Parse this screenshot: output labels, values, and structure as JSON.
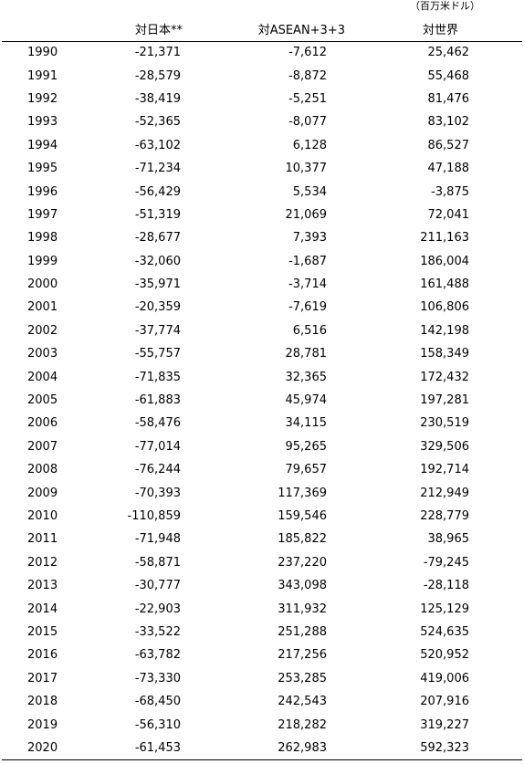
{
  "unit_note": "（百万米ドル）",
  "columns": [
    "",
    "対日本**",
    "対ASEAN+3+3",
    "対世界"
  ],
  "rows": [
    {
      "year": "1990",
      "japan": "-21,371",
      "asean": "-7,612",
      "world": "25,462"
    },
    {
      "year": "1991",
      "japan": "-28,579",
      "asean": "-8,872",
      "world": "55,468"
    },
    {
      "year": "1992",
      "japan": "-38,419",
      "asean": "-5,251",
      "world": "81,476"
    },
    {
      "year": "1993",
      "japan": "-52,365",
      "asean": "-8,077",
      "world": "83,102"
    },
    {
      "year": "1994",
      "japan": "-63,102",
      "asean": "6,128",
      "world": "86,527"
    },
    {
      "year": "1995",
      "japan": "-71,234",
      "asean": "10,377",
      "world": "47,188"
    },
    {
      "year": "1996",
      "japan": "-56,429",
      "asean": "5,534",
      "world": "-3,875"
    },
    {
      "year": "1997",
      "japan": "-51,319",
      "asean": "21,069",
      "world": "72,041"
    },
    {
      "year": "1998",
      "japan": "-28,677",
      "asean": "7,393",
      "world": "211,163"
    },
    {
      "year": "1999",
      "japan": "-32,060",
      "asean": "-1,687",
      "world": "186,004"
    },
    {
      "year": "2000",
      "japan": "-35,971",
      "asean": "-3,714",
      "world": "161,488"
    },
    {
      "year": "2001",
      "japan": "-20,359",
      "asean": "-7,619",
      "world": "106,806"
    },
    {
      "year": "2002",
      "japan": "-37,774",
      "asean": "6,516",
      "world": "142,198"
    },
    {
      "year": "2003",
      "japan": "-55,757",
      "asean": "28,781",
      "world": "158,349"
    },
    {
      "year": "2004",
      "japan": "-71,835",
      "asean": "32,365",
      "world": "172,432"
    },
    {
      "year": "2005",
      "japan": "-61,883",
      "asean": "45,974",
      "world": "197,281"
    },
    {
      "year": "2006",
      "japan": "-58,476",
      "asean": "34,115",
      "world": "230,519"
    },
    {
      "year": "2007",
      "japan": "-77,014",
      "asean": "95,265",
      "world": "329,506"
    },
    {
      "year": "2008",
      "japan": "-76,244",
      "asean": "79,657",
      "world": "192,714"
    },
    {
      "year": "2009",
      "japan": "-70,393",
      "asean": "117,369",
      "world": "212,949"
    },
    {
      "year": "2010",
      "japan": "-110,859",
      "asean": "159,546",
      "world": "228,779"
    },
    {
      "year": "2011",
      "japan": "-71,948",
      "asean": "185,822",
      "world": "38,965"
    },
    {
      "year": "2012",
      "japan": "-58,871",
      "asean": "237,220",
      "world": "-79,245"
    },
    {
      "year": "2013",
      "japan": "-30,777",
      "asean": "343,098",
      "world": "-28,118"
    },
    {
      "year": "2014",
      "japan": "-22,903",
      "asean": "311,932",
      "world": "125,129"
    },
    {
      "year": "2015",
      "japan": "-33,522",
      "asean": "251,288",
      "world": "524,635"
    },
    {
      "year": "2016",
      "japan": "-63,782",
      "asean": "217,256",
      "world": "520,952"
    },
    {
      "year": "2017",
      "japan": "-73,330",
      "asean": "253,285",
      "world": "419,006"
    },
    {
      "year": "2018",
      "japan": "-68,450",
      "asean": "242,543",
      "world": "207,916"
    },
    {
      "year": "2019",
      "japan": "-56,310",
      "asean": "218,282",
      "world": "319,227"
    },
    {
      "year": "2020",
      "japan": "-61,453",
      "asean": "262,983",
      "world": "592,323"
    }
  ]
}
